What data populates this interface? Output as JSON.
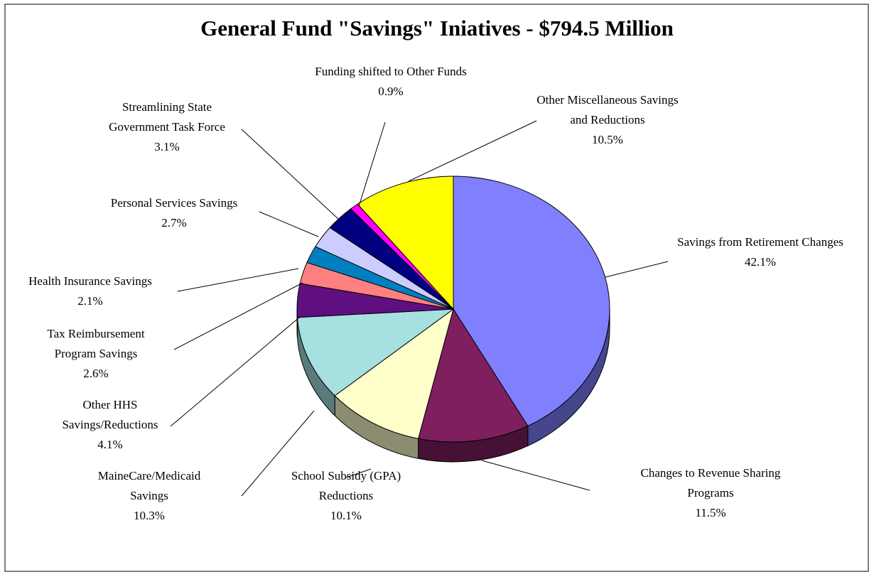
{
  "chart_data": {
    "type": "pie",
    "title": "General Fund \"Savings\" Iniatives - $794.5 Million",
    "categories": [
      "Savings from Retirement Changes",
      "Changes to Revenue Sharing Programs",
      "School Subsidy (GPA) Reductions",
      "MaineCare/Medicaid Savings",
      "Other HHS Savings/Reductions",
      "Tax Reimbursement Program Savings",
      "Health Insurance Savings",
      "Personal Services Savings",
      "Streamlining State Government Task Force",
      "Funding shifted to Other Funds",
      "Other Miscellaneous Savings and Reductions"
    ],
    "values": [
      42.1,
      11.5,
      10.1,
      10.3,
      4.1,
      2.6,
      2.1,
      2.7,
      3.1,
      0.9,
      10.5
    ],
    "value_labels": [
      "42.1%",
      "11.5%",
      "10.1%",
      "10.3%",
      "4.1%",
      "2.6%",
      "2.1%",
      "2.7%",
      "3.1%",
      "0.9%",
      "10.5%"
    ],
    "colors": [
      "#8080ff",
      "#7f1f5f",
      "#ffffcc",
      "#a6e0e0",
      "#5f0f7f",
      "#ff8080",
      "#0080c0",
      "#ccccff",
      "#000080",
      "#ff00ff",
      "#ffff00"
    ]
  }
}
